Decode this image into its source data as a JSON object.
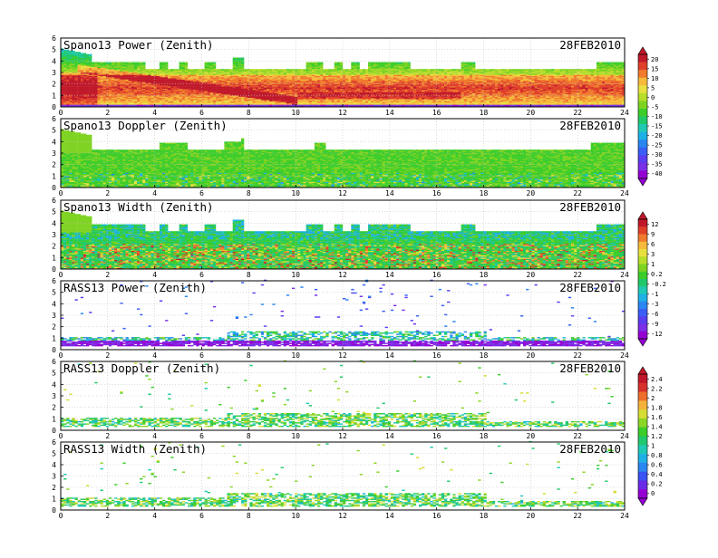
{
  "colors": {
    "power": [
      "#9400d3",
      "#7b2fe6",
      "#5a3df0",
      "#3a5ef5",
      "#2a86f0",
      "#1fb0e6",
      "#1fc9b4",
      "#20c86a",
      "#3ccd2a",
      "#7ed321",
      "#b6de2a",
      "#e8e040",
      "#f6b93b",
      "#f07a2d",
      "#e0402a",
      "#c0182a"
    ],
    "doppler": [
      "#9400d3",
      "#6a2be8",
      "#3a53f2",
      "#2a86f0",
      "#1fb0e6",
      "#1fc9b4",
      "#22c86e",
      "#3ccd2a",
      "#8cd626",
      "#d6dd34",
      "#f4b23a",
      "#ee6f2c",
      "#d8302a",
      "#c0182a"
    ]
  },
  "chart_data": [
    {
      "id": "p1",
      "type": "heatmap",
      "title": "Spano13 Power (Zenith)",
      "date": "28FEB2010",
      "xlabel": "",
      "ylabel": "",
      "xlim": [
        0,
        24
      ],
      "ylim": [
        0,
        6
      ],
      "xticks": [
        "0",
        "2",
        "4",
        "6",
        "8",
        "10",
        "12",
        "14",
        "16",
        "18",
        "20",
        "22",
        "24"
      ],
      "yticks": [
        "0",
        "1",
        "2",
        "3",
        "4",
        "5",
        "6"
      ],
      "grid": true,
      "palette": "power",
      "colorbar": [
        "20",
        "15",
        "10",
        "5",
        "0",
        "-5",
        "-10",
        "-15",
        "-20",
        "-25",
        "-30",
        "-35",
        "-40"
      ],
      "field": "power"
    },
    {
      "id": "p2",
      "type": "heatmap",
      "title": "Spano13 Doppler (Zenith)",
      "date": "28FEB2010",
      "xlabel": "",
      "ylabel": "",
      "xlim": [
        0,
        24
      ],
      "ylim": [
        0,
        6
      ],
      "xticks": [
        "0",
        "2",
        "4",
        "6",
        "8",
        "10",
        "12",
        "14",
        "16",
        "18",
        "20",
        "22",
        "24"
      ],
      "yticks": [
        "0",
        "1",
        "2",
        "3",
        "4",
        "5",
        "6"
      ],
      "grid": true,
      "palette": "power",
      "field": "doppler"
    },
    {
      "id": "p3",
      "type": "heatmap",
      "title": "Spano13 Width (Zenith)",
      "date": "28FEB2010",
      "xlabel": "",
      "ylabel": "",
      "xlim": [
        0,
        24
      ],
      "ylim": [
        0,
        6
      ],
      "xticks": [
        "0",
        "2",
        "4",
        "6",
        "8",
        "10",
        "12",
        "14",
        "16",
        "18",
        "20",
        "22",
        "24"
      ],
      "yticks": [
        "0",
        "1",
        "2",
        "3",
        "4",
        "5",
        "6"
      ],
      "grid": true,
      "palette": "power",
      "colorbar": [
        "12",
        "9",
        "6",
        "3",
        "1",
        "0.2",
        "-0.2",
        "-1",
        "-3",
        "-6",
        "-9",
        "-12"
      ],
      "field": "width"
    },
    {
      "id": "p4",
      "type": "heatmap",
      "title": "RASS13 Power (Zenith)",
      "date": "28FEB2010",
      "xlabel": "",
      "ylabel": "",
      "xlim": [
        0,
        24
      ],
      "ylim": [
        0,
        6
      ],
      "xticks": [
        "0",
        "2",
        "4",
        "6",
        "8",
        "10",
        "12",
        "14",
        "16",
        "18",
        "20",
        "22",
        "24"
      ],
      "yticks": [
        "0",
        "1",
        "2",
        "3",
        "4",
        "5",
        "6"
      ],
      "grid": true,
      "palette": "power",
      "field": "rasspower"
    },
    {
      "id": "p5",
      "type": "heatmap",
      "title": "RASS13 Doppler (Zenith)",
      "date": "28FEB2010",
      "xlabel": "",
      "ylabel": "",
      "xlim": [
        0,
        24
      ],
      "ylim": [
        0,
        6
      ],
      "xticks": [
        "0",
        "2",
        "4",
        "6",
        "8",
        "10",
        "12",
        "14",
        "16",
        "18",
        "20",
        "22",
        "24"
      ],
      "yticks": [
        "0",
        "1",
        "2",
        "3",
        "4",
        "5",
        "6"
      ],
      "grid": true,
      "palette": "doppler",
      "colorbar": [
        "2.4",
        "2.2",
        "2",
        "1.8",
        "1.6",
        "1.4",
        "1.2",
        "1",
        "0.8",
        "0.6",
        "0.4",
        "0.2",
        "0"
      ],
      "field": "rassdoppler"
    },
    {
      "id": "p6",
      "type": "heatmap",
      "title": "RASS13 Width (Zenith)",
      "date": "28FEB2010",
      "xlabel": "",
      "ylabel": "",
      "xlim": [
        0,
        24
      ],
      "ylim": [
        0,
        6
      ],
      "xticks": [
        "0",
        "2",
        "4",
        "6",
        "8",
        "10",
        "12",
        "14",
        "16",
        "18",
        "20",
        "22",
        "24"
      ],
      "yticks": [
        "0",
        "1",
        "2",
        "3",
        "4",
        "5",
        "6"
      ],
      "grid": true,
      "palette": "doppler",
      "field": "rasswidth"
    }
  ]
}
